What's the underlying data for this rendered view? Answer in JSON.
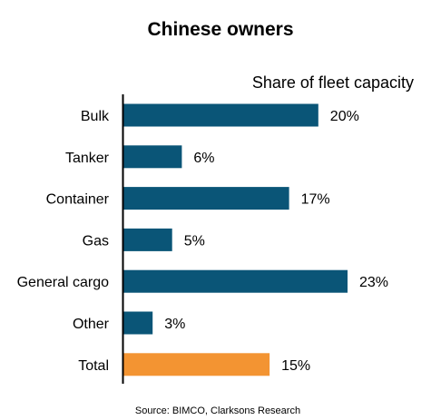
{
  "chart_data": {
    "type": "bar",
    "orientation": "horizontal",
    "title": "Chinese owners",
    "subtitle": "Share of fleet capacity",
    "categories": [
      "Bulk",
      "Tanker",
      "Container",
      "Gas",
      "General cargo",
      "Other",
      "Total"
    ],
    "values": [
      20,
      6,
      17,
      5,
      23,
      3,
      15
    ],
    "value_labels": [
      "20%",
      "6%",
      "17%",
      "5%",
      "23%",
      "3%",
      "15%"
    ],
    "unit": "%",
    "xlim": [
      0,
      23
    ],
    "grid": false,
    "bar_colors": [
      "#0a5577",
      "#0a5577",
      "#0a5577",
      "#0a5577",
      "#0a5577",
      "#0a5577",
      "#f39432"
    ],
    "source": "Source: BIMCO, Clarksons Research"
  }
}
